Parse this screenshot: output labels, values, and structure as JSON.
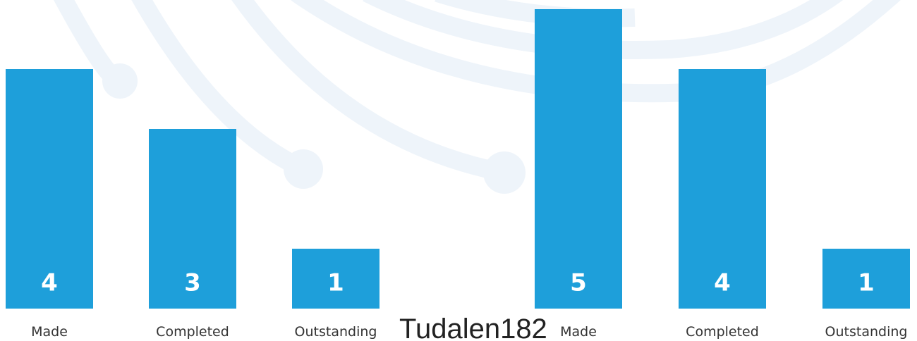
{
  "chart_data": [
    {
      "type": "bar",
      "categories": [
        "Made",
        "Completed",
        "Outstanding"
      ],
      "values": [
        4,
        3,
        1
      ],
      "color": "#1e9fda",
      "ylim": [
        0,
        5
      ]
    },
    {
      "type": "bar",
      "categories": [
        "Made",
        "Completed",
        "Outstanding"
      ],
      "values": [
        5,
        4,
        1
      ],
      "color": "#1e9fda",
      "ylim": [
        0,
        5
      ]
    }
  ],
  "page_label": "Tudalen182"
}
